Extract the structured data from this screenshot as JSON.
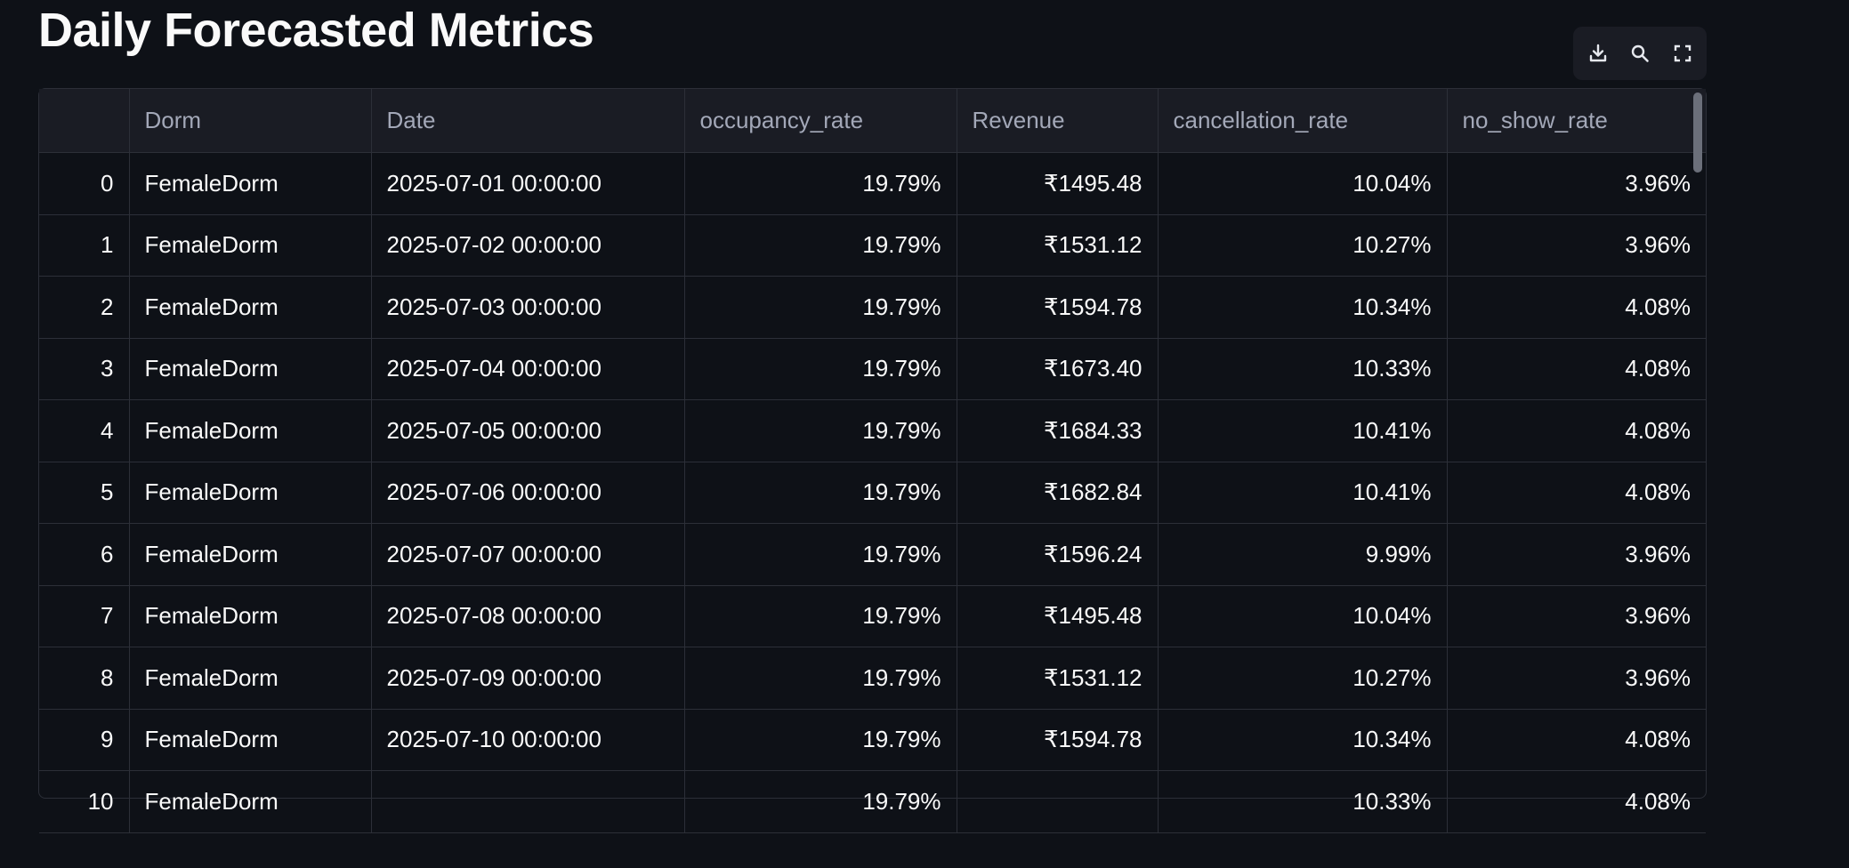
{
  "page": {
    "title": "Daily Forecasted Metrics"
  },
  "toolbar": {
    "download_icon": "download-icon",
    "search_icon": "search-icon",
    "fullscreen_icon": "fullscreen-icon"
  },
  "table": {
    "columns": [
      "",
      "Dorm",
      "Date",
      "occupancy_rate",
      "Revenue",
      "cancellation_rate",
      "no_show_rate"
    ],
    "rows": [
      [
        "0",
        "FemaleDorm",
        "2025-07-01 00:00:00",
        "19.79%",
        "₹1495.48",
        "10.04%",
        "3.96%"
      ],
      [
        "1",
        "FemaleDorm",
        "2025-07-02 00:00:00",
        "19.79%",
        "₹1531.12",
        "10.27%",
        "3.96%"
      ],
      [
        "2",
        "FemaleDorm",
        "2025-07-03 00:00:00",
        "19.79%",
        "₹1594.78",
        "10.34%",
        "4.08%"
      ],
      [
        "3",
        "FemaleDorm",
        "2025-07-04 00:00:00",
        "19.79%",
        "₹1673.40",
        "10.33%",
        "4.08%"
      ],
      [
        "4",
        "FemaleDorm",
        "2025-07-05 00:00:00",
        "19.79%",
        "₹1684.33",
        "10.41%",
        "4.08%"
      ],
      [
        "5",
        "FemaleDorm",
        "2025-07-06 00:00:00",
        "19.79%",
        "₹1682.84",
        "10.41%",
        "4.08%"
      ],
      [
        "6",
        "FemaleDorm",
        "2025-07-07 00:00:00",
        "19.79%",
        "₹1596.24",
        "9.99%",
        "3.96%"
      ],
      [
        "7",
        "FemaleDorm",
        "2025-07-08 00:00:00",
        "19.79%",
        "₹1495.48",
        "10.04%",
        "3.96%"
      ],
      [
        "8",
        "FemaleDorm",
        "2025-07-09 00:00:00",
        "19.79%",
        "₹1531.12",
        "10.27%",
        "3.96%"
      ],
      [
        "9",
        "FemaleDorm",
        "2025-07-10 00:00:00",
        "19.79%",
        "₹1594.78",
        "10.34%",
        "4.08%"
      ],
      [
        "10",
        "FemaleDorm",
        "",
        "19.79%",
        "",
        "10.33%",
        "4.08%"
      ]
    ]
  },
  "colors": {
    "background": "#0e1117",
    "header_background": "#1a1c24",
    "grid_line": "#2c2f38",
    "text": "#fafafa",
    "muted_text": "#a3a8b8"
  }
}
